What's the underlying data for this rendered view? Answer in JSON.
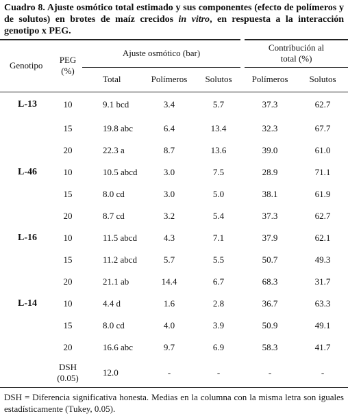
{
  "caption": {
    "part1": "Cuadro 8. Ajuste osmótico total estimado y sus componentes (efecto de polímeros y de solutos) en brotes de maíz crecidos ",
    "italic": "in vitro",
    "part2": ", en respuesta a la interacción genotipo x PEG."
  },
  "header": {
    "genotipo": "Genotipo",
    "peg": "PEG\n(%)",
    "ajuste": "Ajuste osmótico (bar)",
    "contribucion": "Contribución al\ntotal (%)",
    "sub": [
      "Total",
      "Polímeros",
      "Solutos",
      "Polímeros",
      "Solutos"
    ]
  },
  "groups": [
    {
      "genotipo": "L-13",
      "rows": [
        [
          "10",
          "9.1 bcd",
          "3.4",
          "5.7",
          "37.3",
          "62.7"
        ],
        [
          "15",
          "19.8 abc",
          "6.4",
          "13.4",
          "32.3",
          "67.7"
        ],
        [
          "20",
          "22.3 a",
          "8.7",
          "13.6",
          "39.0",
          "61.0"
        ]
      ]
    },
    {
      "genotipo": "L-46",
      "rows": [
        [
          "10",
          "10.5 abcd",
          "3.0",
          "7.5",
          "28.9",
          "71.1"
        ],
        [
          "15",
          "8.0 cd",
          "3.0",
          "5.0",
          "38.1",
          "61.9"
        ],
        [
          "20",
          "8.7 cd",
          "3.2",
          "5.4",
          "37.3",
          "62.7"
        ]
      ]
    },
    {
      "genotipo": "L-16",
      "rows": [
        [
          "10",
          "11.5 abcd",
          "4.3",
          "7.1",
          "37.9",
          "62.1"
        ],
        [
          "15",
          "11.2 abcd",
          "5.7",
          "5.5",
          "50.7",
          "49.3"
        ],
        [
          "20",
          "21.1 ab",
          "14.4",
          "6.7",
          "68.3",
          "31.7"
        ]
      ]
    },
    {
      "genotipo": "L-14",
      "rows": [
        [
          "10",
          "4.4 d",
          "1.6",
          "2.8",
          "36.7",
          "63.3"
        ],
        [
          "15",
          "8.0 cd",
          "4.0",
          "3.9",
          "50.9",
          "49.1"
        ],
        [
          "20",
          "16.6 abc",
          "9.7",
          "6.9",
          "58.3",
          "41.7"
        ]
      ]
    }
  ],
  "dsh": {
    "label": "DSH\n(0.05)",
    "values": [
      "12.0",
      "-",
      "-",
      "-",
      "-"
    ]
  },
  "footnote": "DSH = Diferencia significativa honesta. Medias en la columna con la misma letra son iguales estadísticamente (Tukey, 0.05)."
}
